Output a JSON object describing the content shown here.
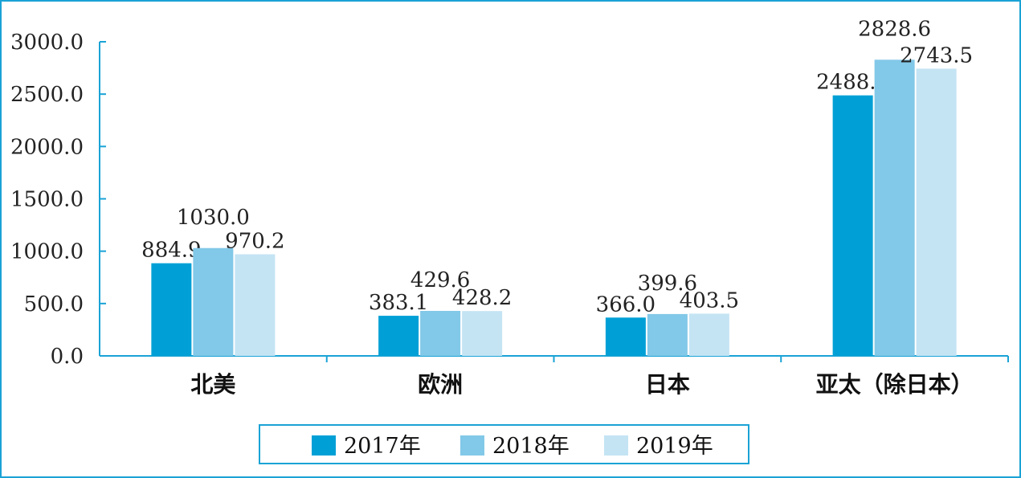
{
  "chart_data": {
    "type": "bar",
    "categories": [
      "北美",
      "欧洲",
      "日本",
      "亚太（除日本）"
    ],
    "series": [
      {
        "name": "2017年",
        "values": [
          884.9,
          383.1,
          366.0,
          2488.2
        ],
        "labels": [
          "884.9",
          "383.1",
          "366.0",
          "2488.2"
        ],
        "color": "#00a0d6"
      },
      {
        "name": "2018年",
        "values": [
          1030.0,
          429.6,
          399.6,
          2828.6
        ],
        "labels": [
          "1030.0",
          "429.6",
          "399.6",
          "2828.6"
        ],
        "color": "#82c8e8"
      },
      {
        "name": "2019年",
        "values": [
          970.2,
          428.2,
          403.5,
          2743.5
        ],
        "labels": [
          "970.2",
          "428.2",
          "403.5",
          "2743.5"
        ],
        "color": "#c4e4f4"
      }
    ],
    "yticks": [
      "0.0",
      "500.0",
      "1000.0",
      "1500.0",
      "2000.0",
      "2500.0",
      "3000.0"
    ],
    "ylim": [
      0,
      3000
    ],
    "title": "",
    "xlabel": "",
    "ylabel": "",
    "grid": false,
    "legend": "bottom",
    "axis_color": "#1aa3d6"
  }
}
